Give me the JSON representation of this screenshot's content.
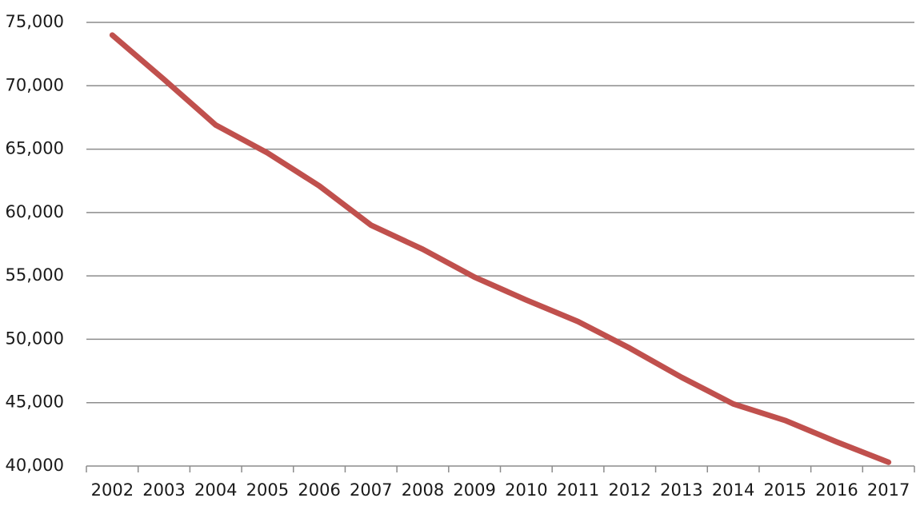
{
  "chart_data": {
    "type": "line",
    "categories": [
      "2002",
      "2003",
      "2004",
      "2005",
      "2006",
      "2007",
      "2008",
      "2009",
      "2010",
      "2011",
      "2012",
      "2013",
      "2014",
      "2015",
      "2016",
      "2017"
    ],
    "series": [
      {
        "color": "#c0504d",
        "values": [
          74000,
          70500,
          66900,
          64700,
          62100,
          59000,
          57100,
          54900,
          53100,
          51400,
          49300,
          47000,
          44900,
          43600,
          41900,
          40300
        ]
      }
    ],
    "ylim": [
      40000,
      75000
    ],
    "yticks": [
      {
        "value": 40000,
        "label": "40,000"
      },
      {
        "value": 45000,
        "label": "45,000"
      },
      {
        "value": 50000,
        "label": "50,000"
      },
      {
        "value": 55000,
        "label": "55,000"
      },
      {
        "value": 60000,
        "label": "60,000"
      },
      {
        "value": 65000,
        "label": "65,000"
      },
      {
        "value": 70000,
        "label": "70,000"
      },
      {
        "value": 75000,
        "label": "75,000"
      }
    ],
    "grid": true
  }
}
